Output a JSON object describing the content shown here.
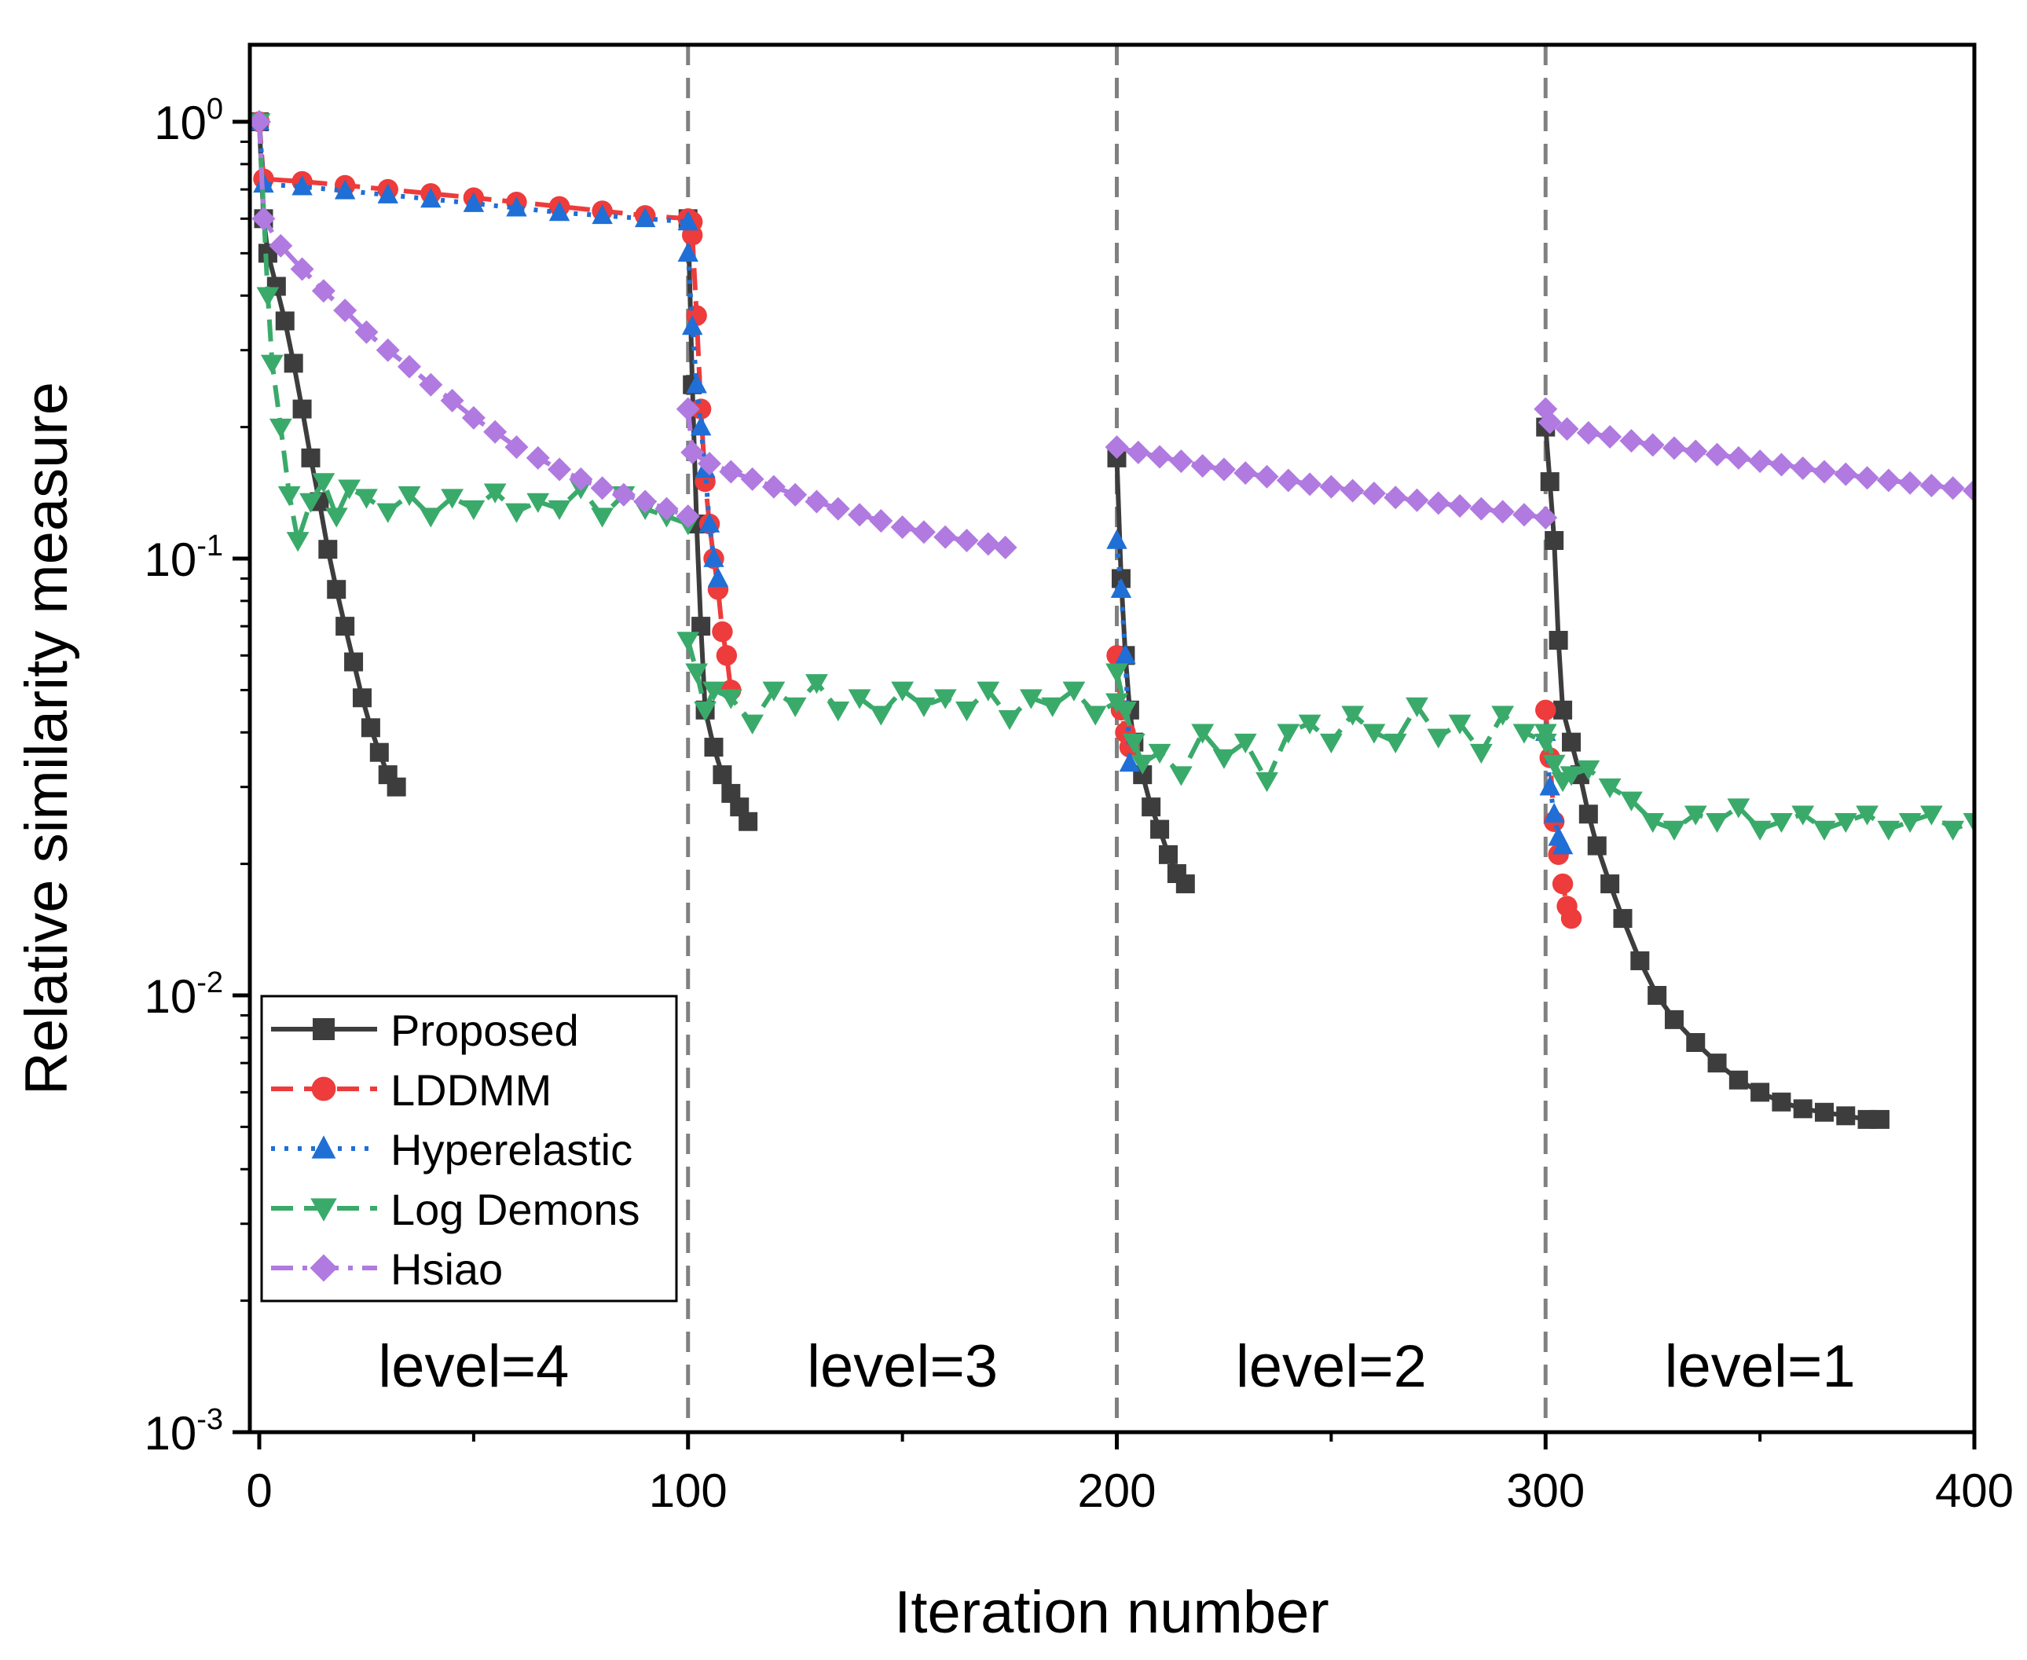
{
  "chart_data": {
    "type": "line",
    "xlabel": "Iteration number",
    "ylabel": "Relative similarity measure",
    "xlim": [
      0,
      400
    ],
    "ylim": [
      0.001,
      1.5
    ],
    "yscale": "log",
    "x_ticks": [
      0,
      100,
      200,
      300,
      400
    ],
    "x_tick_labels": [
      "0",
      "100",
      "200",
      "300",
      "400"
    ],
    "y_ticks": [
      0.001,
      0.01,
      0.1,
      1
    ],
    "y_tick_labels": [
      {
        "base": "10",
        "exp": "-3"
      },
      {
        "base": "10",
        "exp": "-2"
      },
      {
        "base": "10",
        "exp": "-1"
      },
      {
        "base": "10",
        "exp": "0"
      }
    ],
    "legend_position": "bottom-left",
    "level_boundaries": [
      100,
      200,
      300
    ],
    "level_labels": [
      {
        "text": "level=4",
        "x": 50
      },
      {
        "text": "level=3",
        "x": 150
      },
      {
        "text": "level=2",
        "x": 250
      },
      {
        "text": "level=1",
        "x": 350
      }
    ],
    "series": [
      {
        "name": "Proposed",
        "color": "#3d3d3d",
        "marker": "square",
        "line": "solid",
        "segments": [
          {
            "x": [
              0,
              1,
              2,
              4,
              6,
              8,
              10,
              12,
              14,
              16,
              18,
              20,
              22,
              24,
              26,
              28,
              30,
              32
            ],
            "y": [
              1.0,
              0.6,
              0.5,
              0.42,
              0.35,
              0.28,
              0.22,
              0.17,
              0.135,
              0.105,
              0.085,
              0.07,
              0.058,
              0.048,
              0.041,
              0.036,
              0.032,
              0.03
            ]
          },
          {
            "x": [
              100,
              101,
              102,
              103,
              104,
              106,
              108,
              110,
              112,
              114
            ],
            "y": [
              0.6,
              0.25,
              0.12,
              0.07,
              0.045,
              0.037,
              0.032,
              0.029,
              0.027,
              0.025
            ]
          },
          {
            "x": [
              200,
              201,
              202,
              203,
              204,
              206,
              208,
              210,
              212,
              214,
              216
            ],
            "y": [
              0.17,
              0.09,
              0.06,
              0.045,
              0.038,
              0.032,
              0.027,
              0.024,
              0.021,
              0.019,
              0.018
            ]
          },
          {
            "x": [
              300,
              301,
              302,
              303,
              304,
              306,
              308,
              310,
              312,
              315,
              318,
              322,
              326,
              330,
              335,
              340,
              345,
              350,
              355,
              360,
              365,
              370,
              375,
              378
            ],
            "y": [
              0.2,
              0.15,
              0.11,
              0.065,
              0.045,
              0.038,
              0.032,
              0.026,
              0.022,
              0.018,
              0.015,
              0.012,
              0.01,
              0.0088,
              0.0078,
              0.007,
              0.0064,
              0.006,
              0.0057,
              0.0055,
              0.0054,
              0.0053,
              0.0052,
              0.0052
            ]
          }
        ]
      },
      {
        "name": "LDDMM",
        "color": "#ee3b3b",
        "marker": "circle",
        "line": "dash",
        "segments": [
          {
            "x": [
              0,
              1,
              10,
              20,
              30,
              40,
              50,
              60,
              70,
              80,
              90,
              100,
              101
            ],
            "y": [
              1.0,
              0.74,
              0.73,
              0.715,
              0.7,
              0.685,
              0.67,
              0.655,
              0.64,
              0.625,
              0.61,
              0.6,
              0.59
            ]
          },
          {
            "x": [
              101,
              102,
              103,
              104,
              105,
              106,
              107,
              108,
              109,
              110
            ],
            "y": [
              0.55,
              0.36,
              0.22,
              0.15,
              0.12,
              0.1,
              0.085,
              0.068,
              0.06,
              0.05
            ]
          },
          {
            "x": [
              200,
              201,
              202,
              203
            ],
            "y": [
              0.06,
              0.045,
              0.04,
              0.037
            ]
          },
          {
            "x": [
              300,
              301,
              302,
              303,
              304,
              305,
              306
            ],
            "y": [
              0.045,
              0.035,
              0.025,
              0.021,
              0.018,
              0.016,
              0.015
            ]
          }
        ]
      },
      {
        "name": "Hyperelastic",
        "color": "#1f6fd6",
        "marker": "triangle-up",
        "line": "dot",
        "segments": [
          {
            "x": [
              0,
              1,
              10,
              20,
              30,
              40,
              50,
              60,
              70,
              80,
              90,
              100
            ],
            "y": [
              1.0,
              0.72,
              0.71,
              0.695,
              0.68,
              0.665,
              0.65,
              0.635,
              0.62,
              0.61,
              0.6,
              0.59
            ]
          },
          {
            "x": [
              100,
              101,
              102,
              103,
              104,
              105,
              106,
              107
            ],
            "y": [
              0.5,
              0.34,
              0.25,
              0.2,
              0.16,
              0.12,
              0.1,
              0.09
            ]
          },
          {
            "x": [
              200,
              201,
              202,
              203
            ],
            "y": [
              0.11,
              0.085,
              0.06,
              0.034
            ]
          },
          {
            "x": [
              300,
              301,
              302,
              303,
              304
            ],
            "y": [
              0.04,
              0.03,
              0.026,
              0.023,
              0.022
            ]
          }
        ]
      },
      {
        "name": "Log Demons",
        "color": "#3aaa6a",
        "marker": "triangle-down",
        "line": "dash",
        "segments": [
          {
            "x": [
              0,
              2,
              3,
              5,
              7,
              9,
              12,
              15,
              18,
              21,
              25,
              30,
              35,
              40,
              45,
              50,
              55,
              60,
              65,
              70,
              75,
              80,
              85,
              90,
              95,
              100
            ],
            "y": [
              1.0,
              0.4,
              0.28,
              0.2,
              0.14,
              0.11,
              0.135,
              0.15,
              0.125,
              0.145,
              0.138,
              0.128,
              0.14,
              0.125,
              0.138,
              0.13,
              0.142,
              0.128,
              0.135,
              0.13,
              0.145,
              0.125,
              0.14,
              0.13,
              0.125,
              0.12
            ]
          },
          {
            "x": [
              100,
              102,
              104,
              106,
              110,
              115,
              120,
              125,
              130,
              135,
              140,
              145,
              150,
              155,
              160,
              165,
              170,
              175,
              180,
              185,
              190,
              195,
              200
            ],
            "y": [
              0.065,
              0.055,
              0.045,
              0.05,
              0.048,
              0.042,
              0.05,
              0.046,
              0.052,
              0.045,
              0.048,
              0.044,
              0.05,
              0.046,
              0.048,
              0.045,
              0.05,
              0.043,
              0.048,
              0.046,
              0.05,
              0.044,
              0.047
            ]
          },
          {
            "x": [
              200,
              202,
              204,
              206,
              210,
              215,
              220,
              225,
              230,
              235,
              240,
              245,
              250,
              255,
              260,
              265,
              270,
              275,
              280,
              285,
              290,
              295,
              300
            ],
            "y": [
              0.055,
              0.045,
              0.038,
              0.034,
              0.036,
              0.032,
              0.04,
              0.035,
              0.038,
              0.031,
              0.04,
              0.042,
              0.038,
              0.044,
              0.04,
              0.038,
              0.046,
              0.039,
              0.042,
              0.036,
              0.044,
              0.04,
              0.038
            ]
          },
          {
            "x": [
              300,
              302,
              304,
              306,
              310,
              315,
              320,
              325,
              330,
              335,
              340,
              345,
              350,
              355,
              360,
              365,
              370,
              375,
              380,
              385,
              390,
              395,
              400
            ],
            "y": [
              0.04,
              0.034,
              0.031,
              0.032,
              0.033,
              0.03,
              0.028,
              0.025,
              0.024,
              0.026,
              0.025,
              0.027,
              0.024,
              0.025,
              0.026,
              0.024,
              0.025,
              0.026,
              0.024,
              0.025,
              0.026,
              0.024,
              0.025
            ]
          }
        ]
      },
      {
        "name": "Hsiao",
        "color": "#b07ae0",
        "marker": "diamond",
        "line": "dashdot",
        "segments": [
          {
            "x": [
              0,
              1,
              5,
              10,
              15,
              20,
              25,
              30,
              35,
              40,
              45,
              50,
              55,
              60,
              65,
              70,
              75,
              80,
              85,
              90,
              95,
              100
            ],
            "y": [
              1.0,
              0.6,
              0.52,
              0.46,
              0.41,
              0.37,
              0.33,
              0.3,
              0.275,
              0.25,
              0.23,
              0.21,
              0.195,
              0.18,
              0.17,
              0.16,
              0.152,
              0.145,
              0.14,
              0.135,
              0.13,
              0.125
            ]
          },
          {
            "x": [
              100,
              101,
              105,
              110,
              115,
              120,
              125,
              130,
              135,
              140,
              145,
              150,
              155,
              160,
              165,
              170,
              174
            ],
            "y": [
              0.22,
              0.175,
              0.165,
              0.158,
              0.152,
              0.146,
              0.14,
              0.135,
              0.13,
              0.126,
              0.122,
              0.118,
              0.115,
              0.112,
              0.11,
              0.108,
              0.106
            ]
          },
          {
            "x": [
              200,
              205,
              210,
              215,
              220,
              225,
              230,
              235,
              240,
              245,
              250,
              255,
              260,
              265,
              270,
              275,
              280,
              285,
              290,
              295,
              300
            ],
            "y": [
              0.18,
              0.175,
              0.171,
              0.167,
              0.163,
              0.16,
              0.157,
              0.154,
              0.151,
              0.148,
              0.146,
              0.143,
              0.141,
              0.138,
              0.136,
              0.134,
              0.132,
              0.13,
              0.128,
              0.126,
              0.124
            ]
          },
          {
            "x": [
              300,
              301,
              305,
              310,
              315,
              320,
              325,
              330,
              335,
              340,
              345,
              350,
              355,
              360,
              365,
              370,
              375,
              380,
              385,
              390,
              395,
              400
            ],
            "y": [
              0.22,
              0.205,
              0.198,
              0.194,
              0.19,
              0.186,
              0.182,
              0.179,
              0.176,
              0.173,
              0.17,
              0.167,
              0.164,
              0.161,
              0.158,
              0.156,
              0.153,
              0.151,
              0.149,
              0.147,
              0.145,
              0.143
            ]
          }
        ]
      }
    ]
  }
}
